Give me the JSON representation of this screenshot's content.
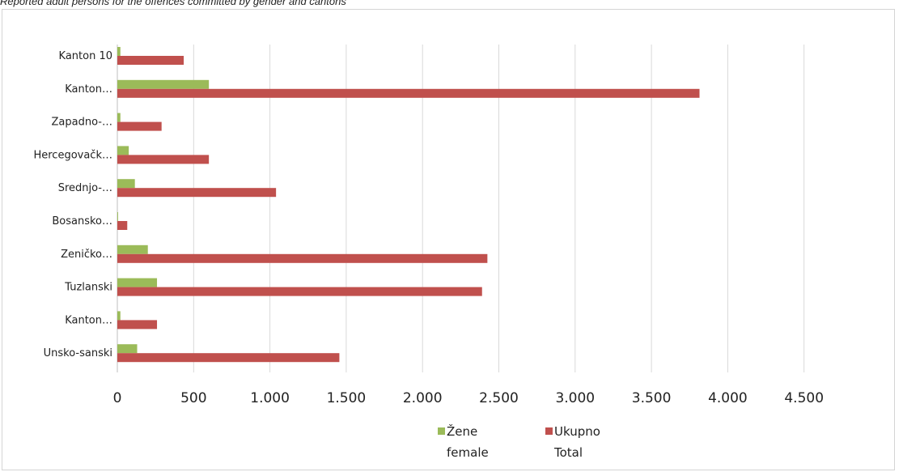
{
  "caption": "Reported adult persons for the offences committed by gender and cantons",
  "colors": {
    "female": "#9BBB59",
    "total": "#C0504D",
    "grid": "#d9d9d9",
    "axis": "#bfbfbf"
  },
  "chart_data": {
    "type": "bar",
    "orientation": "horizontal",
    "title": "",
    "xlabel": "",
    "ylabel": "",
    "xlim": [
      0,
      4500
    ],
    "x_ticks": [
      0,
      500,
      1000,
      1500,
      2000,
      2500,
      3000,
      3500,
      4000,
      4500
    ],
    "x_tick_labels": [
      "0",
      "500",
      "1.000",
      "1.500",
      "2.000",
      "2.500",
      "3.000",
      "3.500",
      "4.000",
      "4.500"
    ],
    "grid": true,
    "legend_position": "bottom",
    "categories": [
      "Kanton 10",
      "Kanton…",
      "Zapadno-…",
      "Hercegovačk…",
      "Srednjo-…",
      "Bosansko…",
      "Zeničko…",
      "Tuzlanski",
      "Kanton…",
      "Unsko-sanski"
    ],
    "series": [
      {
        "name": "Žene female",
        "legend_line1": "Žene",
        "legend_line2": "female",
        "color": "#9BBB59",
        "values": [
          20,
          600,
          20,
          75,
          115,
          5,
          200,
          260,
          20,
          130
        ]
      },
      {
        "name": "Ukupno Total",
        "legend_line1": "Ukupno",
        "legend_line2": "Total",
        "color": "#C0504D",
        "values": [
          435,
          3815,
          290,
          600,
          1040,
          65,
          2425,
          2390,
          260,
          1455
        ]
      }
    ]
  }
}
